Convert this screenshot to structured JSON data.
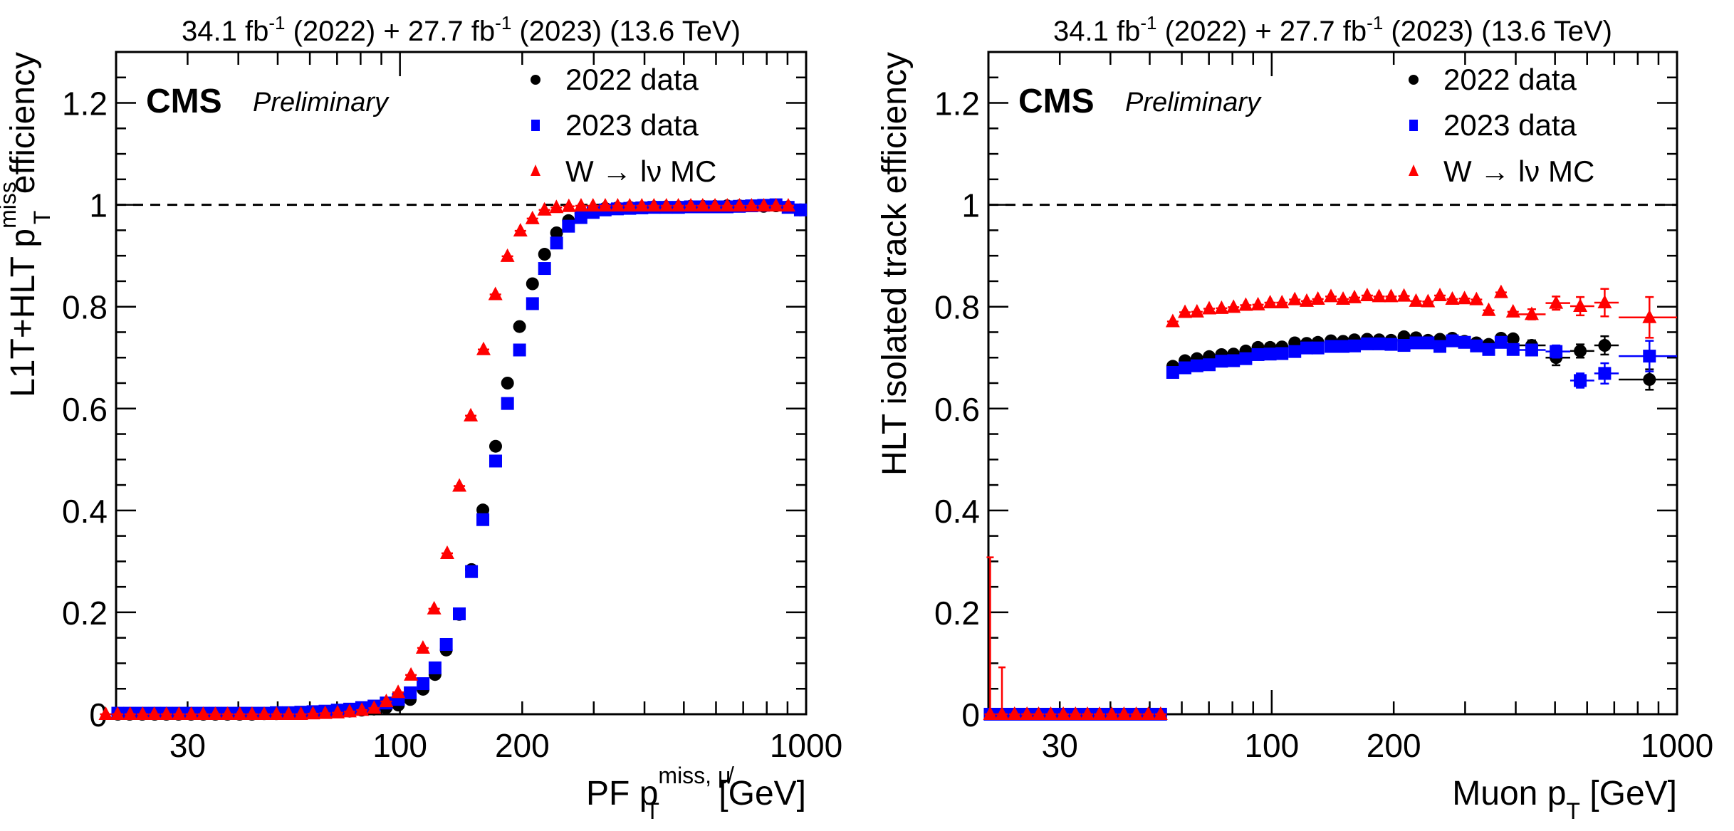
{
  "colors": {
    "data2022": "#000000",
    "data2023": "#0000ff",
    "mc": "#ff0000"
  },
  "chart_data": [
    {
      "type": "scatter",
      "title": "34.1 fb-1 (2022) + 27.7 fb-1 (2023) (13.6 TeV)",
      "header": {
        "pre": "34.1 fb",
        "sup1": "-1",
        "mid": " (2022) + 27.7 fb",
        "sup2": "-1",
        "post": " (2023) (13.6 TeV)"
      },
      "cms_label": "CMS",
      "cms_sublabel": "Preliminary",
      "ylabel": {
        "pre": "L1T+HLT p",
        "sup": "miss",
        "sub": "T",
        "post": " efficiency"
      },
      "xlabel": {
        "pre": "PF p",
        "sup": "miss, μ̸",
        "sub": "T",
        "post": " [GeV]"
      },
      "xscale": "log",
      "xlim": [
        20,
        1000
      ],
      "ylim": [
        0,
        1.3
      ],
      "xticks": [
        {
          "v": 30,
          "label": "30"
        },
        {
          "v": 100,
          "label": "100"
        },
        {
          "v": 200,
          "label": "200"
        },
        {
          "v": 1000,
          "label": "1000"
        }
      ],
      "yticks": [
        {
          "v": 0,
          "label": "0"
        },
        {
          "v": 0.2,
          "label": "0.2"
        },
        {
          "v": 0.4,
          "label": "0.4"
        },
        {
          "v": 0.6,
          "label": "0.6"
        },
        {
          "v": 0.8,
          "label": "0.8"
        },
        {
          "v": 1.0,
          "label": "1"
        },
        {
          "v": 1.2,
          "label": "1.2"
        }
      ],
      "reference_line": 1.0,
      "legend": {
        "position": "top-right",
        "entries": [
          "2022 data",
          "2023 data",
          "W → lν MC"
        ]
      },
      "x": [
        20.2,
        21.6,
        23.2,
        24.9,
        26.6,
        28.5,
        30.6,
        32.8,
        35.1,
        37.6,
        40.3,
        43.2,
        46.3,
        49.6,
        53.2,
        57.0,
        61.1,
        65.4,
        70.1,
        75.2,
        80.5,
        86.3,
        92.5,
        99.1,
        106,
        114,
        122,
        130,
        140,
        150,
        160,
        172,
        184,
        197,
        212,
        227,
        243,
        260,
        279,
        299,
        320,
        343,
        368,
        394,
        422,
        452,
        485,
        519,
        557,
        596,
        639,
        685,
        734,
        786,
        843,
        903,
        968
      ],
      "series": [
        {
          "name": "2022 data",
          "marker": "circle",
          "color": "#000000",
          "values": [
            0,
            0,
            0,
            0,
            0,
            0,
            0,
            0,
            0,
            0,
            0,
            0,
            0.001,
            0.001,
            0.002,
            0.002,
            0.003,
            0.004,
            0.005,
            0.006,
            0.008,
            0.01,
            0.013,
            0.018,
            0.029,
            0.049,
            0.078,
            0.126,
            0.196,
            0.284,
            0.401,
            0.526,
            0.65,
            0.761,
            0.845,
            0.903,
            0.945,
            0.969,
            0.983,
            0.99,
            0.993,
            0.994,
            0.995,
            0.995,
            0.996,
            0.996,
            0.996,
            0.997,
            0.997,
            0.997,
            0.998,
            0.998,
            0.998,
            0.997,
            0.998,
            0.996,
            0.99
          ]
        },
        {
          "name": "2023 data",
          "marker": "square",
          "color": "#0000ff",
          "values": [
            0.002,
            0.002,
            0.002,
            0.002,
            0.002,
            0.002,
            0.002,
            0.002,
            0.002,
            0.002,
            0.002,
            0.002,
            0.002,
            0.003,
            0.003,
            0.004,
            0.005,
            0.006,
            0.008,
            0.01,
            0.013,
            0.016,
            0.022,
            0.029,
            0.042,
            0.06,
            0.091,
            0.137,
            0.197,
            0.28,
            0.382,
            0.497,
            0.61,
            0.715,
            0.806,
            0.875,
            0.925,
            0.958,
            0.975,
            0.985,
            0.99,
            0.992,
            0.993,
            0.994,
            0.995,
            0.995,
            0.995,
            0.996,
            0.996,
            0.996,
            0.996,
            0.997,
            0.998,
            0.999,
            1.0,
            0.995,
            0.99
          ]
        },
        {
          "name": "W → lν MC",
          "marker": "triangle",
          "color": "#ff0000",
          "values": [
            0,
            0,
            0,
            0,
            0,
            0,
            0,
            0,
            0,
            0,
            0,
            0,
            0,
            0,
            0,
            0,
            0,
            0.001,
            0.002,
            0.003,
            0.005,
            0.008,
            0.012,
            0.025,
            0.043,
            0.077,
            0.13,
            0.207,
            0.316,
            0.448,
            0.586,
            0.716,
            0.824,
            0.899,
            0.949,
            0.973,
            0.99,
            0.995,
            0.997,
            0.998,
            0.998,
            0.998,
            0.998,
            0.998,
            0.998,
            0.998,
            0.998,
            0.998,
            0.998,
            0.998,
            0.998,
            0.998,
            0.998,
            0.998,
            0.998,
            0.998,
            0.998
          ]
        }
      ]
    },
    {
      "type": "scatter",
      "title": "34.1 fb-1 (2022) + 27.7 fb-1 (2023) (13.6 TeV)",
      "header": {
        "pre": "34.1 fb",
        "sup1": "-1",
        "mid": " (2022) + 27.7 fb",
        "sup2": "-1",
        "post": " (2023) (13.6 TeV)"
      },
      "cms_label": "CMS",
      "cms_sublabel": "Preliminary",
      "ylabel": {
        "pre": "HLT isolated track efficiency"
      },
      "xlabel": {
        "pre": "Muon p",
        "sub": "T",
        "post": " [GeV]"
      },
      "xscale": "log",
      "xlim": [
        20,
        1000
      ],
      "ylim": [
        0,
        1.3
      ],
      "xticks": [
        {
          "v": 30,
          "label": "30"
        },
        {
          "v": 100,
          "label": "100"
        },
        {
          "v": 200,
          "label": "200"
        },
        {
          "v": 1000,
          "label": "1000"
        }
      ],
      "yticks": [
        {
          "v": 0,
          "label": "0"
        },
        {
          "v": 0.2,
          "label": "0.2"
        },
        {
          "v": 0.4,
          "label": "0.4"
        },
        {
          "v": 0.6,
          "label": "0.6"
        },
        {
          "v": 0.8,
          "label": "0.8"
        },
        {
          "v": 1.0,
          "label": "1"
        },
        {
          "v": 1.2,
          "label": "1.2"
        }
      ],
      "reference_line": 1.0,
      "legend": {
        "position": "top-right",
        "entries": [
          "2022 data",
          "2023 data",
          "W → lν MC"
        ]
      },
      "x": [
        20.2,
        21.6,
        23.2,
        24.9,
        26.6,
        28.5,
        30.6,
        32.8,
        35.1,
        37.6,
        40.3,
        43.2,
        46.3,
        49.6,
        53.2,
        57.0,
        61.1,
        65.4,
        70.1,
        75.2,
        80.5,
        86.3,
        92.5,
        99.1,
        106,
        114,
        122,
        130,
        140,
        150,
        160,
        172,
        184,
        197,
        212,
        227,
        243,
        260,
        279,
        299,
        320,
        343,
        368,
        394,
        438,
        503,
        577,
        663,
        855
      ],
      "x_bin_edges_wide": [
        [
          405,
          474
        ],
        [
          474,
          545
        ],
        [
          545,
          625
        ],
        [
          625,
          718
        ],
        [
          718,
          1000
        ]
      ],
      "series": [
        {
          "name": "2022 data",
          "marker": "circle",
          "color": "#000000",
          "values": [
            0,
            0,
            0,
            0,
            0,
            0,
            0,
            0,
            0,
            0,
            0,
            0,
            0,
            0,
            0,
            0.683,
            0.694,
            0.698,
            0.702,
            0.706,
            0.707,
            0.713,
            0.72,
            0.72,
            0.721,
            0.729,
            0.728,
            0.73,
            0.733,
            0.732,
            0.735,
            0.736,
            0.735,
            0.734,
            0.741,
            0.739,
            0.734,
            0.736,
            0.738,
            0.732,
            0.729,
            0.726,
            0.738,
            0.737,
            0.724,
            0.7,
            0.713,
            0.724,
            0.657
          ],
          "yerr_tail": [
            0.01,
            0.015,
            0.013,
            0.018,
            0.02
          ]
        },
        {
          "name": "2023 data",
          "marker": "square",
          "color": "#0000ff",
          "values": [
            0,
            0,
            0,
            0,
            0,
            0,
            0,
            0,
            0,
            0,
            0,
            0,
            0,
            0,
            0,
            0.671,
            0.68,
            0.684,
            0.686,
            0.693,
            0.694,
            0.698,
            0.706,
            0.707,
            0.708,
            0.712,
            0.719,
            0.719,
            0.722,
            0.722,
            0.723,
            0.727,
            0.727,
            0.726,
            0.724,
            0.729,
            0.729,
            0.722,
            0.733,
            0.73,
            0.723,
            0.716,
            0.73,
            0.716,
            0.715,
            0.712,
            0.655,
            0.669,
            0.703
          ],
          "yerr_tail": [
            0.01,
            0.012,
            0.014,
            0.02,
            0.03
          ]
        },
        {
          "name": "W → lν MC",
          "marker": "triangle",
          "color": "#ff0000",
          "values": [
            0,
            0,
            0,
            0,
            0,
            0,
            0,
            0,
            0,
            0,
            0,
            0,
            0,
            0,
            0,
            0.771,
            0.789,
            0.79,
            0.796,
            0.797,
            0.799,
            0.803,
            0.804,
            0.808,
            0.808,
            0.814,
            0.811,
            0.815,
            0.82,
            0.815,
            0.818,
            0.822,
            0.82,
            0.82,
            0.821,
            0.811,
            0.81,
            0.822,
            0.815,
            0.816,
            0.814,
            0.793,
            0.828,
            0.79,
            0.785,
            0.807,
            0.801,
            0.808,
            0.779
          ],
          "yerr_head": [
            0.308,
            0.092
          ],
          "yerr_tail": [
            0.01,
            0.013,
            0.018,
            0.027,
            0.04
          ]
        }
      ]
    }
  ]
}
